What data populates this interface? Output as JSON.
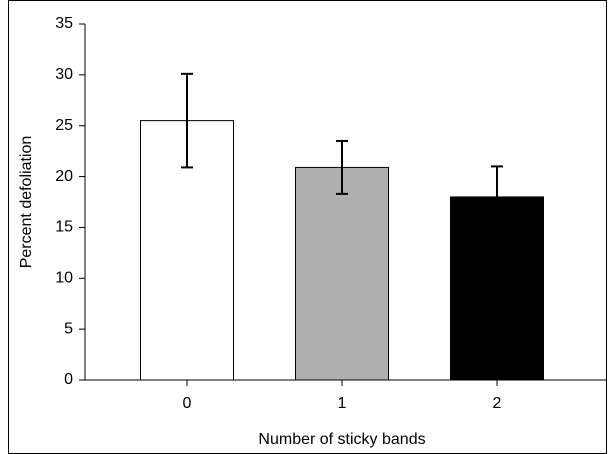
{
  "chart_data": {
    "type": "bar",
    "x_label": "Number of sticky bands",
    "y_label": "Percent defoliation",
    "categories": [
      "0",
      "1",
      "2"
    ],
    "values": [
      25.5,
      20.9,
      18.0
    ],
    "errors": [
      4.6,
      2.6,
      3.0
    ],
    "colors": [
      "#ffffff",
      "#b0b0b0",
      "#000000"
    ],
    "ylim": [
      0,
      35
    ],
    "yticks": [
      0,
      5,
      10,
      15,
      20,
      25,
      30,
      35
    ],
    "grid": false
  }
}
